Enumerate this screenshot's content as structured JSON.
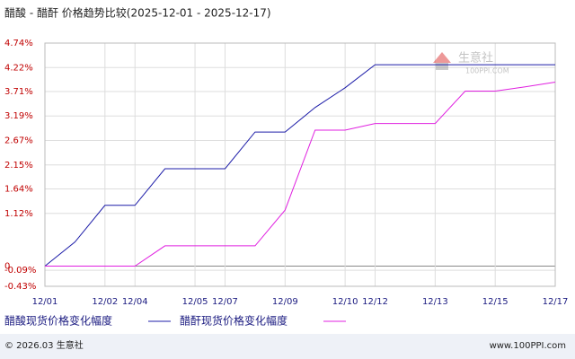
{
  "chart_data": {
    "type": "line",
    "title": "醋酸 - 醋酐 价格趋势比较(2025-12-01 - 2025-12-17)",
    "watermark": "生意社",
    "watermark_url": "100PPI.COM",
    "categories": [
      "12/01",
      null,
      "12/02",
      "12/04",
      null,
      "12/05",
      "12/07",
      null,
      "12/09",
      null,
      "12/10",
      "12/12",
      null,
      "12/13",
      null,
      "12/15",
      null,
      "12/17"
    ],
    "series": [
      {
        "name": "醋酸现货价格变化幅度",
        "color": "#1c1ca8",
        "values": [
          0,
          0.51,
          1.29,
          1.29,
          2.07,
          2.07,
          2.07,
          2.85,
          2.85,
          3.37,
          3.79,
          4.28,
          4.28,
          4.28,
          4.28,
          4.28,
          4.28,
          4.28
        ]
      },
      {
        "name": "醋酐现货价格变化幅度",
        "color": "#e020e0",
        "values": [
          0,
          0,
          0,
          0,
          0.43,
          0.43,
          0.43,
          0.43,
          1.19,
          2.89,
          2.89,
          3.03,
          3.03,
          3.03,
          3.72,
          3.72,
          3.81,
          3.91
        ]
      }
    ],
    "ylim": [
      -0.43,
      4.74
    ],
    "yticks": [
      {
        "value": -0.43,
        "label": "-0.43%"
      },
      {
        "value": -0.09,
        "label": "-0.09%"
      },
      0,
      {
        "value": 1.12,
        "label": "1.12%"
      },
      {
        "value": 1.64,
        "label": "1.64%"
      },
      {
        "value": 2.15,
        "label": "2.15%"
      },
      {
        "value": 2.67,
        "label": "2.67%"
      },
      {
        "value": 3.19,
        "label": "3.19%"
      },
      {
        "value": 3.71,
        "label": "3.71%"
      },
      {
        "value": 4.22,
        "label": "4.22%"
      },
      {
        "value": 4.74,
        "label": "4.74%"
      }
    ],
    "grid": true,
    "footer_left": "© 2026.03 生意社",
    "footer_right": "www.100PPI.com"
  }
}
